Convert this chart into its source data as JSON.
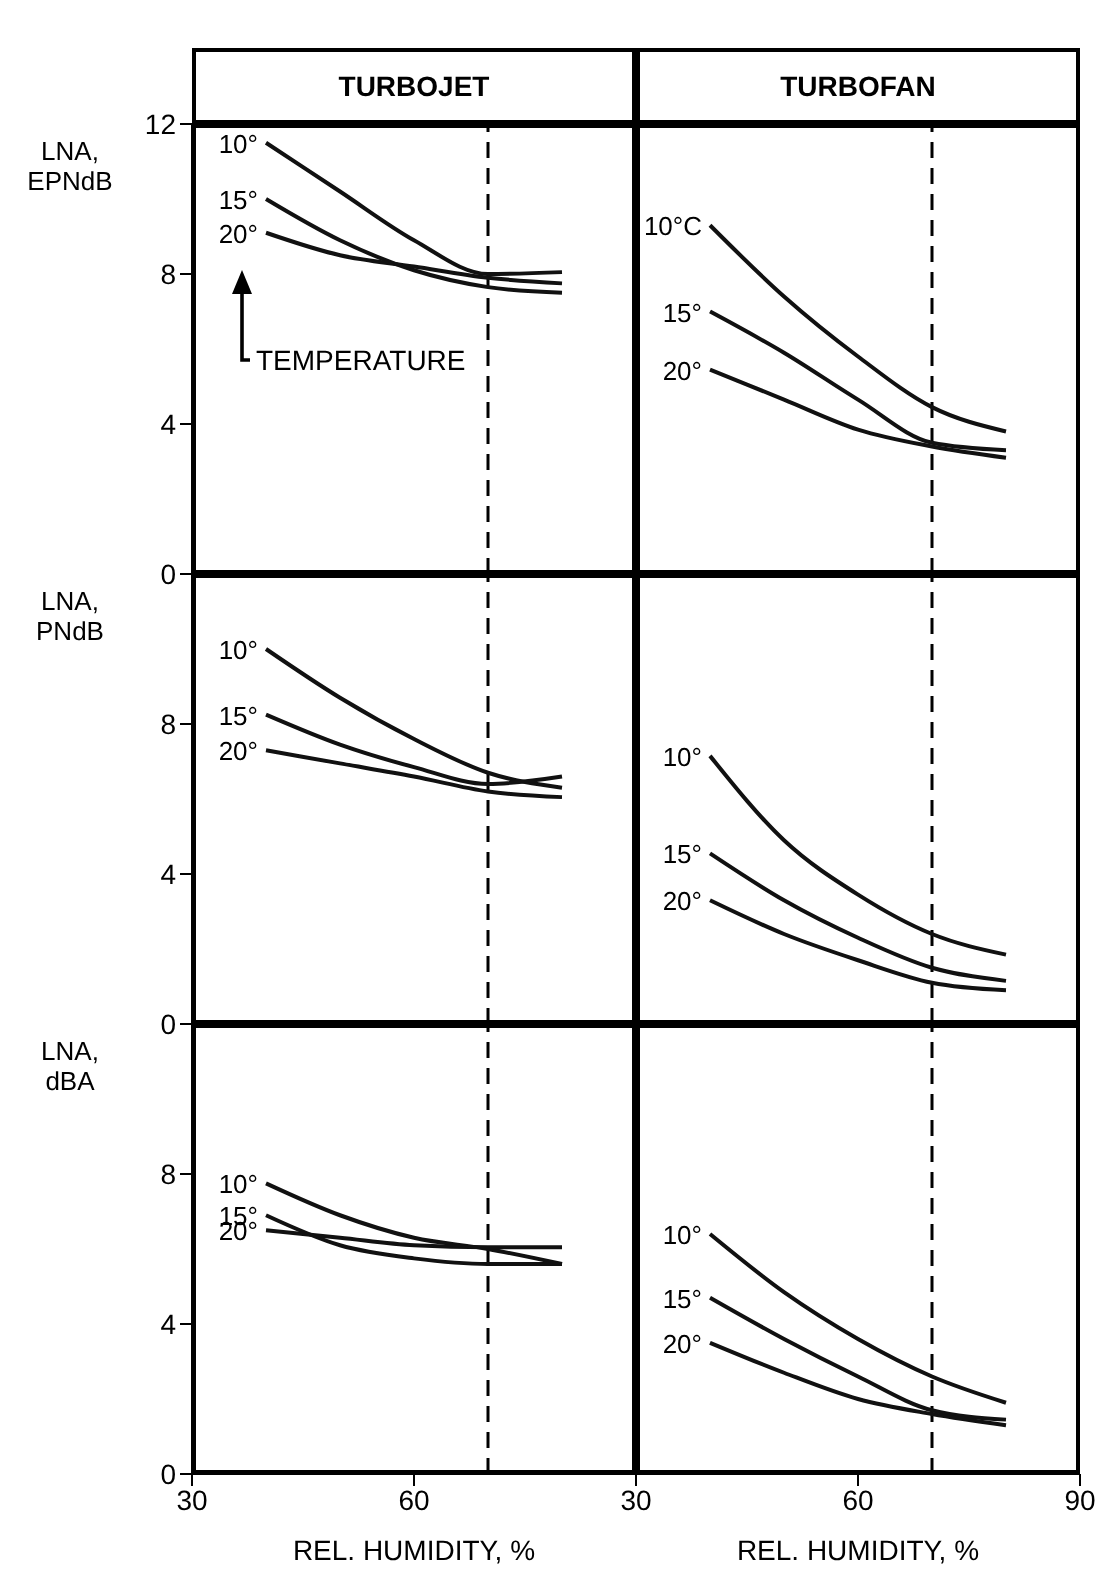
{
  "chart_data": [
    {
      "type": "line",
      "title": "TURBOJET",
      "ylabel": "LNA, EPNdB",
      "x": [
        40,
        50,
        60,
        70,
        80
      ],
      "xlim": [
        30,
        90
      ],
      "ylim": [
        0,
        12
      ],
      "yticks": [
        0,
        4,
        8,
        12
      ],
      "tick_labels": "y",
      "line_style": "solid",
      "marker": "none",
      "legend": false,
      "grid": false,
      "annotations": [
        "TEMPERATURE"
      ],
      "ref_lines": [
        {
          "axis": "x",
          "value": 70,
          "line_style": "dashed",
          "color": "#000000"
        }
      ],
      "series": [
        {
          "name": "10°",
          "color": "#111111",
          "values": [
            11.5,
            10.2,
            8.9,
            8.0,
            8.05
          ]
        },
        {
          "name": "15°",
          "color": "#111111",
          "values": [
            10.0,
            8.9,
            8.1,
            7.65,
            7.5
          ]
        },
        {
          "name": "20°",
          "color": "#111111",
          "values": [
            9.1,
            8.5,
            8.2,
            7.9,
            7.75
          ]
        }
      ]
    },
    {
      "type": "line",
      "title": "TURBOFAN",
      "x": [
        40,
        50,
        60,
        70,
        80
      ],
      "xlim": [
        30,
        90
      ],
      "ylim": [
        0,
        12
      ],
      "yticks": [
        0,
        4,
        8,
        12
      ],
      "tick_labels": false,
      "line_style": "solid",
      "marker": "none",
      "legend": false,
      "grid": false,
      "ref_lines": [
        {
          "axis": "x",
          "value": 70,
          "line_style": "dashed",
          "color": "#000000"
        }
      ],
      "series": [
        {
          "name": "10°C",
          "color": "#111111",
          "values": [
            9.3,
            7.4,
            5.8,
            4.45,
            3.8
          ]
        },
        {
          "name": "15°",
          "color": "#111111",
          "values": [
            7.0,
            5.9,
            4.65,
            3.5,
            3.3
          ]
        },
        {
          "name": "20°",
          "color": "#111111",
          "values": [
            5.45,
            4.65,
            3.85,
            3.4,
            3.1
          ]
        }
      ]
    },
    {
      "type": "line",
      "ylabel": "LNA, PNdB",
      "x": [
        40,
        50,
        60,
        70,
        80
      ],
      "xlim": [
        30,
        90
      ],
      "ylim": [
        0,
        12
      ],
      "yticks": [
        0,
        4,
        8
      ],
      "tick_labels": "y",
      "line_style": "solid",
      "marker": "none",
      "legend": false,
      "grid": false,
      "ref_lines": [
        {
          "axis": "x",
          "value": 70,
          "line_style": "dashed",
          "color": "#000000"
        }
      ],
      "series": [
        {
          "name": "10°",
          "color": "#111111",
          "values": [
            10.0,
            8.7,
            7.6,
            6.7,
            6.3
          ]
        },
        {
          "name": "15°",
          "color": "#111111",
          "values": [
            8.25,
            7.45,
            6.85,
            6.4,
            6.6
          ]
        },
        {
          "name": "20°",
          "color": "#111111",
          "values": [
            7.3,
            6.95,
            6.6,
            6.2,
            6.05
          ]
        }
      ]
    },
    {
      "type": "line",
      "x": [
        40,
        50,
        60,
        70,
        80
      ],
      "xlim": [
        30,
        90
      ],
      "ylim": [
        0,
        12
      ],
      "yticks": [
        0,
        4,
        8
      ],
      "tick_labels": false,
      "line_style": "solid",
      "marker": "none",
      "legend": false,
      "grid": false,
      "ref_lines": [
        {
          "axis": "x",
          "value": 70,
          "line_style": "dashed",
          "color": "#000000"
        }
      ],
      "series": [
        {
          "name": "10°",
          "color": "#111111",
          "values": [
            7.15,
            4.9,
            3.45,
            2.4,
            1.85
          ]
        },
        {
          "name": "15°",
          "color": "#111111",
          "values": [
            4.55,
            3.3,
            2.3,
            1.5,
            1.15
          ]
        },
        {
          "name": "20°",
          "color": "#111111",
          "values": [
            3.3,
            2.4,
            1.7,
            1.1,
            0.9
          ]
        }
      ]
    },
    {
      "type": "line",
      "ylabel": "LNA, dBA",
      "xlabel": "REL. HUMIDITY, %",
      "x": [
        40,
        50,
        60,
        70,
        80
      ],
      "xlim": [
        30,
        90
      ],
      "xticks": [
        30,
        60
      ],
      "ylim": [
        0,
        12
      ],
      "yticks": [
        0,
        4,
        8
      ],
      "line_style": "solid",
      "marker": "none",
      "legend": false,
      "grid": false,
      "ref_lines": [
        {
          "axis": "x",
          "value": 70,
          "line_style": "dashed",
          "color": "#000000"
        }
      ],
      "series": [
        {
          "name": "10°",
          "color": "#111111",
          "values": [
            7.75,
            6.9,
            6.3,
            6.0,
            5.6
          ]
        },
        {
          "name": "15°",
          "color": "#111111",
          "values": [
            6.9,
            6.1,
            5.75,
            5.6,
            5.6
          ]
        },
        {
          "name": "20°",
          "color": "#111111",
          "values": [
            6.5,
            6.3,
            6.1,
            6.05,
            6.05
          ]
        }
      ]
    },
    {
      "type": "line",
      "xlabel": "REL. HUMIDITY, %",
      "x": [
        40,
        50,
        60,
        70,
        80
      ],
      "xlim": [
        30,
        90
      ],
      "xticks": [
        30,
        60,
        90
      ],
      "ylim": [
        0,
        12
      ],
      "yticks": [
        0,
        4,
        8
      ],
      "tick_labels": "x",
      "line_style": "solid",
      "marker": "none",
      "legend": false,
      "grid": false,
      "ref_lines": [
        {
          "axis": "x",
          "value": 70,
          "line_style": "dashed",
          "color": "#000000"
        }
      ],
      "series": [
        {
          "name": "10°",
          "color": "#111111",
          "values": [
            6.4,
            4.85,
            3.6,
            2.6,
            1.9
          ]
        },
        {
          "name": "15°",
          "color": "#111111",
          "values": [
            4.7,
            3.6,
            2.6,
            1.7,
            1.45
          ]
        },
        {
          "name": "20°",
          "color": "#111111",
          "values": [
            3.5,
            2.7,
            2.0,
            1.6,
            1.3
          ]
        }
      ]
    }
  ]
}
